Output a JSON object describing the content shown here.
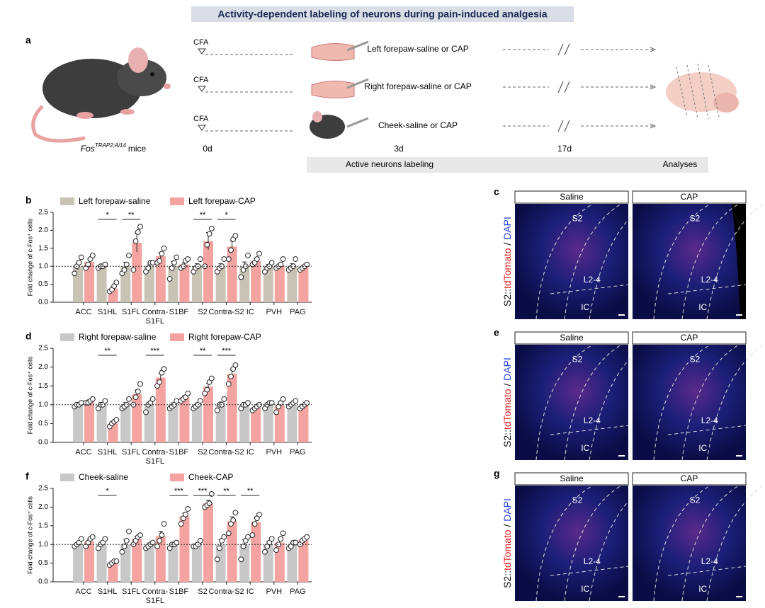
{
  "header": {
    "title": "Activity-dependent labeling of neurons during pain-induced analgesia"
  },
  "panel_a": {
    "panel": "a",
    "strain": "Fos",
    "strain_sup": "TRAP2;Ai14",
    "strain_suffix": "mice",
    "cfa": [
      "CFA",
      "CFA",
      "CFA"
    ],
    "injections": [
      "Left forepaw-saline or CAP",
      "Right forepaw-saline or CAP",
      "Cheek-saline or CAP"
    ],
    "days": [
      "0d",
      "3d",
      "17d"
    ],
    "stages": [
      "Active neurons labeling",
      "Analyses"
    ]
  },
  "chart_data": [
    {
      "type": "bar",
      "panel": "b",
      "ylabel": "Fold change of c-Fos⁺ cells",
      "categories": [
        "ACC",
        "S1HL",
        "S1FL",
        "Contra-\nS1FL",
        "S1BF",
        "S2",
        "Contra-S2",
        "IC",
        "PVH",
        "PAG"
      ],
      "series": [
        {
          "name": "Left forepaw-saline",
          "color": "#c9c3b6",
          "values": [
            1.0,
            1.0,
            1.0,
            1.0,
            1.0,
            1.0,
            1.0,
            1.0,
            1.0,
            1.0
          ],
          "errors": [
            0.1,
            0.03,
            0.11,
            0.06,
            0.13,
            0.07,
            0.07,
            0.12,
            0.05,
            0.07
          ],
          "points": [
            [
              0.8,
              1.0,
              1.1,
              1.25
            ],
            [
              0.95,
              1.0,
              1.0,
              1.05
            ],
            [
              0.8,
              0.9,
              1.05,
              1.3
            ],
            [
              0.85,
              0.95,
              1.1,
              1.1
            ],
            [
              0.65,
              0.95,
              1.1,
              1.25
            ],
            [
              0.85,
              0.95,
              1.0,
              1.2
            ],
            [
              0.85,
              0.95,
              1.0,
              1.2
            ],
            [
              0.7,
              0.9,
              1.0,
              1.3
            ],
            [
              0.85,
              0.95,
              1.0,
              1.1
            ],
            [
              0.9,
              0.95,
              1.0,
              1.2
            ]
          ]
        },
        {
          "name": "Left forepaw-CAP",
          "color": "#f4a3a0",
          "values": [
            1.12,
            0.38,
            1.65,
            1.28,
            1.05,
            1.7,
            1.55,
            1.15,
            1.02,
            0.98
          ],
          "errors": [
            0.08,
            0.05,
            0.25,
            0.1,
            0.06,
            0.24,
            0.15,
            0.06,
            0.05,
            0.03
          ],
          "points": [
            [
              0.95,
              1.05,
              1.2,
              1.3
            ],
            [
              0.3,
              0.35,
              0.45,
              0.55
            ],
            [
              0.9,
              1.7,
              1.95,
              2.1
            ],
            [
              1.1,
              1.15,
              1.35,
              1.5
            ],
            [
              0.95,
              1.0,
              1.15,
              1.2
            ],
            [
              1.0,
              1.6,
              1.9,
              2.05
            ],
            [
              1.2,
              1.45,
              1.75,
              1.85
            ],
            [
              1.05,
              1.1,
              1.2,
              1.35
            ],
            [
              0.95,
              1.0,
              1.05,
              1.2
            ],
            [
              0.9,
              0.95,
              1.0,
              1.05
            ]
          ]
        }
      ],
      "significance": [
        null,
        "*",
        "**",
        null,
        null,
        "**",
        "*",
        null,
        null,
        null
      ],
      "hline": 1,
      "ylim": [
        0,
        2.5
      ],
      "yticks": [
        {
          "value": 0,
          "label": "0.0"
        },
        0.5,
        {
          "value": 1,
          "label": "1.0"
        },
        1.5,
        {
          "value": 2,
          "label": "2.0"
        },
        2.5
      ]
    },
    {
      "type": "bar",
      "panel": "d",
      "ylabel": "Fold change of c-Fos⁺ cells",
      "categories": [
        "ACC",
        "S1HL",
        "S1FL",
        "Contra-\nS1FL",
        "S1BF",
        "S2",
        "Contra-S2",
        "IC",
        "PVH",
        "PAG"
      ],
      "series": [
        {
          "name": "Right forepaw-saline",
          "color": "#c8c8c8",
          "values": [
            1.0,
            1.0,
            1.0,
            1.0,
            1.0,
            1.0,
            1.0,
            1.0,
            1.0,
            1.0
          ],
          "errors": [
            0.03,
            0.05,
            0.06,
            0.07,
            0.05,
            0.05,
            0.07,
            0.04,
            0.04,
            0.04
          ],
          "points": [
            [
              0.95,
              1.0,
              1.0,
              1.05
            ],
            [
              0.9,
              1.0,
              1.0,
              1.1
            ],
            [
              0.9,
              0.95,
              1.0,
              1.15
            ],
            [
              0.8,
              1.0,
              1.05,
              1.15
            ],
            [
              0.9,
              0.95,
              1.0,
              1.1
            ],
            [
              0.9,
              0.95,
              1.0,
              1.1
            ],
            [
              0.85,
              1.0,
              1.0,
              1.15
            ],
            [
              0.9,
              1.0,
              1.0,
              1.05
            ],
            [
              0.9,
              1.0,
              1.05,
              1.05
            ],
            [
              0.95,
              1.0,
              1.05,
              1.1
            ]
          ]
        },
        {
          "name": "Right forepaw-CAP",
          "color": "#f4a3a0",
          "values": [
            1.1,
            0.5,
            1.28,
            1.72,
            1.2,
            1.48,
            1.82,
            0.92,
            0.98,
            0.98
          ],
          "errors": [
            0.03,
            0.04,
            0.11,
            0.1,
            0.04,
            0.09,
            0.1,
            0.03,
            0.07,
            0.03
          ],
          "points": [
            [
              1.05,
              1.05,
              1.1,
              1.15
            ],
            [
              0.42,
              0.5,
              0.55,
              0.6
            ],
            [
              1.0,
              1.2,
              1.35,
              1.55
            ],
            [
              1.5,
              1.6,
              1.85,
              1.95
            ],
            [
              1.1,
              1.15,
              1.2,
              1.3
            ],
            [
              1.3,
              1.4,
              1.6,
              1.7
            ],
            [
              1.55,
              1.75,
              1.95,
              2.05
            ],
            [
              0.85,
              0.9,
              0.95,
              1.0
            ],
            [
              0.8,
              0.95,
              1.05,
              1.15
            ],
            [
              0.9,
              0.95,
              1.0,
              1.05
            ]
          ]
        }
      ],
      "significance": [
        null,
        "**",
        null,
        "***",
        null,
        "**",
        "***",
        null,
        null,
        null
      ],
      "hline": 1,
      "ylim": [
        0,
        2.5
      ],
      "yticks": [
        {
          "value": 0,
          "label": "0.0"
        },
        0.5,
        {
          "value": 1,
          "label": "1.0"
        },
        1.5,
        {
          "value": 2,
          "label": "2.0"
        },
        2.5
      ]
    },
    {
      "type": "bar",
      "panel": "f",
      "ylabel": "Fold change of c-Fos⁺ cells",
      "categories": [
        "ACC",
        "S1HL",
        "S1FL",
        "Contra-\nS1FL",
        "S1BF",
        "S2",
        "Contra-S2",
        "IC",
        "PVH",
        "PAG"
      ],
      "series": [
        {
          "name": "Cheek-saline",
          "color": "#c8c8c8",
          "values": [
            1.0,
            1.0,
            1.0,
            1.0,
            1.0,
            1.0,
            1.0,
            1.0,
            1.0,
            1.0
          ],
          "errors": [
            0.05,
            0.06,
            0.12,
            0.04,
            0.04,
            0.04,
            0.13,
            0.13,
            0.07,
            0.04
          ],
          "points": [
            [
              0.95,
              1.0,
              1.05,
              1.15
            ],
            [
              0.9,
              1.0,
              1.05,
              1.15
            ],
            [
              0.8,
              0.95,
              1.1,
              1.35
            ],
            [
              0.9,
              0.95,
              1.0,
              1.05
            ],
            [
              0.9,
              1.0,
              1.0,
              1.05
            ],
            [
              0.95,
              0.95,
              1.0,
              1.1
            ],
            [
              0.6,
              0.9,
              1.1,
              1.2
            ],
            [
              0.6,
              0.95,
              1.1,
              1.2
            ],
            [
              0.8,
              0.95,
              1.05,
              1.15
            ],
            [
              0.9,
              0.95,
              1.05,
              1.05
            ]
          ]
        },
        {
          "name": "Cheek-CAP",
          "color": "#f4a3a0",
          "values": [
            1.08,
            0.52,
            1.15,
            1.22,
            1.75,
            2.1,
            1.62,
            1.6,
            1.05,
            1.12
          ],
          "errors": [
            0.06,
            0.03,
            0.06,
            0.13,
            0.09,
            0.08,
            0.12,
            0.13,
            0.1,
            0.05
          ],
          "points": [
            [
              0.95,
              1.05,
              1.15,
              1.2
            ],
            [
              0.45,
              0.5,
              0.55,
              0.55
            ],
            [
              1.0,
              1.1,
              1.2,
              1.25
            ],
            [
              0.95,
              1.1,
              1.25,
              1.55
            ],
            [
              1.55,
              1.7,
              1.8,
              1.95
            ],
            [
              2.0,
              2.05,
              2.1,
              2.35
            ],
            [
              1.3,
              1.55,
              1.65,
              1.85
            ],
            [
              1.25,
              1.55,
              1.7,
              1.8
            ],
            [
              0.85,
              1.0,
              1.15,
              1.3
            ],
            [
              1.0,
              1.1,
              1.15,
              1.2
            ]
          ]
        }
      ],
      "significance": [
        null,
        "*",
        null,
        null,
        "***",
        "***",
        "**",
        "**",
        null,
        null
      ],
      "hline": 1,
      "ylim": [
        0,
        2.5
      ],
      "yticks": [
        {
          "value": 0,
          "label": "0.0"
        },
        0.5,
        {
          "value": 1,
          "label": "1.0"
        },
        1.5,
        {
          "value": 2,
          "label": "2.0"
        },
        2.5
      ]
    }
  ],
  "micrographs": [
    {
      "panel": "c",
      "conditions": [
        "Saline",
        "CAP"
      ],
      "regions": [
        "S2",
        "L2-4",
        "IC"
      ],
      "stain": [
        "S2::",
        "tdTomato",
        " / ",
        "DAPI"
      ]
    },
    {
      "panel": "e",
      "conditions": [
        "Saline",
        "CAP"
      ],
      "regions": [
        "S2",
        "L2-4",
        "IC"
      ],
      "stain": [
        "S2::",
        "tdTomato",
        " / ",
        "DAPI"
      ]
    },
    {
      "panel": "g",
      "conditions": [
        "Saline",
        "CAP"
      ],
      "regions": [
        "S2",
        "L2-4",
        "IC"
      ],
      "stain": [
        "S2::",
        "tdTomato",
        " / ",
        "DAPI"
      ]
    }
  ]
}
